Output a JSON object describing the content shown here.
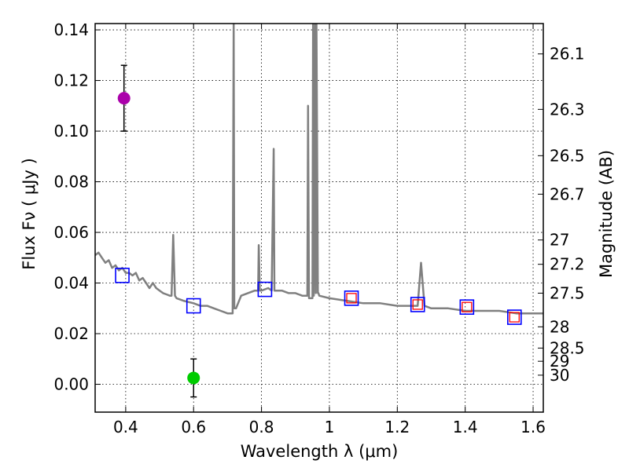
{
  "chart_data": {
    "type": "line",
    "xlabel": "Wavelength  λ (μm)",
    "ylabel": "Flux  Fν  ( μJy )",
    "ylabel_right": "Magnitude (AB)",
    "xlim": [
      0.31,
      1.63
    ],
    "ylim": [
      -0.011,
      0.1425
    ],
    "grid": true,
    "x_ticks": [
      0.4,
      0.6,
      0.8,
      1.0,
      1.2,
      1.4,
      1.6
    ],
    "x_tick_labels": [
      "0.4",
      "0.6",
      "0.8",
      "1",
      "1.2",
      "1.4",
      "1.6"
    ],
    "y_ticks": [
      0.0,
      0.02,
      0.04,
      0.06,
      0.08,
      0.1,
      0.12,
      0.14
    ],
    "y_tick_labels": [
      "0.00",
      "0.02",
      "0.04",
      "0.06",
      "0.08",
      "0.10",
      "0.12",
      "0.14"
    ],
    "right_ticks": [
      {
        "label": "26.1",
        "flux": 0.1305
      },
      {
        "label": "26.3",
        "flux": 0.1086
      },
      {
        "label": "26.5",
        "flux": 0.0903
      },
      {
        "label": "26.7",
        "flux": 0.0751
      },
      {
        "label": "27",
        "flux": 0.057
      },
      {
        "label": "27.2",
        "flux": 0.0474
      },
      {
        "label": "27.5",
        "flux": 0.036
      },
      {
        "label": "28",
        "flux": 0.0227
      },
      {
        "label": "28.5",
        "flux": 0.0143
      },
      {
        "label": "29",
        "flux": 0.0091
      },
      {
        "label": "30",
        "flux": 0.0036
      }
    ],
    "series": [
      {
        "style": "line",
        "color": "#808080",
        "x": [
          0.31,
          0.32,
          0.33,
          0.34,
          0.35,
          0.36,
          0.37,
          0.38,
          0.39,
          0.4,
          0.41,
          0.42,
          0.43,
          0.44,
          0.45,
          0.46,
          0.47,
          0.48,
          0.49,
          0.5,
          0.51,
          0.52,
          0.53,
          0.535,
          0.54,
          0.545,
          0.55,
          0.57,
          0.6,
          0.62,
          0.64,
          0.66,
          0.68,
          0.7,
          0.715,
          0.718,
          0.72,
          0.725,
          0.74,
          0.76,
          0.78,
          0.79,
          0.792,
          0.795,
          0.8,
          0.82,
          0.83,
          0.836,
          0.838,
          0.84,
          0.86,
          0.88,
          0.9,
          0.92,
          0.935,
          0.937,
          0.94,
          0.95,
          0.952,
          0.954,
          0.958,
          0.96,
          0.962,
          0.966,
          0.968,
          0.97,
          1.0,
          1.05,
          1.1,
          1.15,
          1.2,
          1.25,
          1.26,
          1.27,
          1.28,
          1.3,
          1.35,
          1.4,
          1.45,
          1.5,
          1.55,
          1.6,
          1.63
        ],
        "y": [
          0.051,
          0.052,
          0.05,
          0.048,
          0.049,
          0.046,
          0.047,
          0.045,
          0.046,
          0.044,
          0.044,
          0.043,
          0.044,
          0.041,
          0.042,
          0.04,
          0.038,
          0.04,
          0.038,
          0.037,
          0.036,
          0.0355,
          0.035,
          0.035,
          0.059,
          0.035,
          0.034,
          0.033,
          0.032,
          0.031,
          0.031,
          0.03,
          0.029,
          0.028,
          0.028,
          0.143,
          0.03,
          0.03,
          0.035,
          0.036,
          0.037,
          0.037,
          0.055,
          0.037,
          0.037,
          0.038,
          0.037,
          0.093,
          0.037,
          0.037,
          0.037,
          0.036,
          0.036,
          0.035,
          0.035,
          0.11,
          0.034,
          0.034,
          0.143,
          0.035,
          0.143,
          0.036,
          0.143,
          0.036,
          0.036,
          0.035,
          0.034,
          0.033,
          0.032,
          0.032,
          0.031,
          0.031,
          0.031,
          0.048,
          0.031,
          0.03,
          0.03,
          0.029,
          0.029,
          0.029,
          0.028,
          0.028,
          0.028
        ]
      },
      {
        "style": "squares-blue",
        "color": "#0000ff",
        "x": [
          0.39,
          0.6,
          0.81,
          1.065,
          1.26,
          1.405,
          1.545
        ],
        "y": [
          0.043,
          0.031,
          0.0375,
          0.034,
          0.0315,
          0.0305,
          0.0265
        ]
      },
      {
        "style": "squares-red",
        "color": "#ff0000",
        "x": [
          1.065,
          1.26,
          1.405,
          1.545
        ],
        "y": [
          0.034,
          0.0315,
          0.0305,
          0.0265
        ]
      },
      {
        "style": "points",
        "x": [
          0.395,
          0.6
        ],
        "y": [
          0.113,
          0.0025
        ],
        "yerr": [
          0.013,
          0.0075
        ],
        "colors": [
          "#aa00aa",
          "#00cc00"
        ]
      }
    ]
  }
}
